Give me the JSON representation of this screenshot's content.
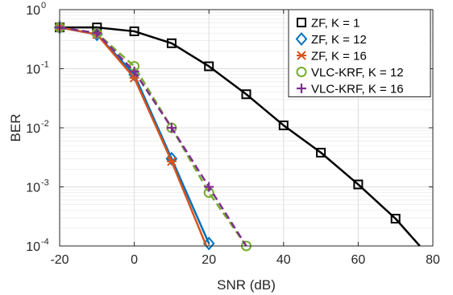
{
  "chart_data": {
    "type": "line",
    "xlabel": "SNR (dB)",
    "ylabel": "BER",
    "xlim": [
      -20,
      80
    ],
    "ylim": [
      0.0001,
      1
    ],
    "yscale": "log",
    "xticks": [
      "-20",
      "0",
      "20",
      "40",
      "60",
      "80"
    ],
    "yticks": [
      {
        "base": "10",
        "exp": "-4"
      },
      {
        "base": "10",
        "exp": "-3"
      },
      {
        "base": "10",
        "exp": "-2"
      },
      {
        "base": "10",
        "exp": "-1"
      },
      {
        "base": "10",
        "exp": "0"
      }
    ],
    "grid": true,
    "legend_position": "top-right",
    "series": [
      {
        "name": "ZF, K = 1",
        "color": "#000000",
        "marker": "square",
        "dash": "solid",
        "x": [
          -20,
          -10,
          0,
          10,
          20,
          30,
          40,
          50,
          60,
          70,
          76.5
        ],
        "y": [
          0.5,
          0.5,
          0.43,
          0.27,
          0.11,
          0.037,
          0.011,
          0.0038,
          0.0011,
          0.00029,
          0.0001
        ],
        "marker_x": [
          -20,
          -10,
          0,
          10,
          20,
          30,
          40,
          50,
          60,
          70
        ]
      },
      {
        "name": "ZF, K = 12",
        "color": "#0072BD",
        "marker": "diamond",
        "dash": "solid",
        "x": [
          -20,
          -10,
          0,
          10,
          20
        ],
        "y": [
          0.5,
          0.38,
          0.08,
          0.003,
          0.00011
        ],
        "marker_x": [
          -20,
          -10,
          0,
          10,
          20
        ]
      },
      {
        "name": "ZF, K = 16",
        "color": "#D95319",
        "marker": "asterisk",
        "dash": "solid",
        "x": [
          -20,
          -10,
          0,
          10,
          19.3
        ],
        "y": [
          0.5,
          0.38,
          0.07,
          0.0027,
          0.0001
        ],
        "marker_x": [
          -20,
          -10,
          0,
          10
        ]
      },
      {
        "name": "VLC-KRF, K = 12",
        "color": "#77AC30",
        "marker": "circle",
        "dash": "dashed",
        "x": [
          -20,
          -10,
          0,
          10,
          20,
          30
        ],
        "y": [
          0.5,
          0.4,
          0.11,
          0.01,
          0.0008,
          0.0001
        ],
        "marker_x": [
          -20,
          -10,
          0,
          10,
          20,
          30
        ]
      },
      {
        "name": "VLC-KRF, K = 16",
        "color": "#7E2F8E",
        "marker": "plus",
        "dash": "dashed",
        "x": [
          -20,
          -10,
          0,
          10,
          20,
          30
        ],
        "y": [
          0.5,
          0.4,
          0.09,
          0.01,
          0.001,
          0.0001
        ],
        "marker_x": [
          -20,
          -10,
          0,
          10,
          20
        ]
      }
    ]
  }
}
